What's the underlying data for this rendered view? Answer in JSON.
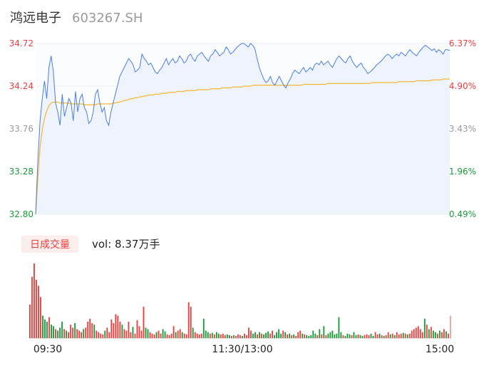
{
  "stock": {
    "name": "鸿远电子",
    "code": "603267.SH"
  },
  "volume_panel": {
    "tag_label": "日成交量",
    "vol_text": "vol: 8.37万手"
  },
  "colors": {
    "price_line": "#4a7fe0",
    "price_fill": "#eef3fc",
    "avg_line": "#f5b731",
    "up": "#e84040",
    "down": "#1a9a3a",
    "neutral": "#9a9a9a",
    "grid": "#eeeeee",
    "tag_bg": "#fdeeee",
    "tag_text": "#e84040"
  },
  "chart_data": {
    "type": "line",
    "prev_close": 32.64,
    "x_tick_labels": [
      "09:30",
      "11:30/13:00",
      "15:00"
    ],
    "price_axis_labels": [
      "34.72",
      "34.24",
      "33.76",
      "33.28",
      "32.80"
    ],
    "price_axis_values": [
      34.72,
      34.24,
      33.76,
      33.28,
      32.8
    ],
    "pct_axis_labels": [
      "6.37%",
      "4.90%",
      "3.43%",
      "1.96%",
      "0.49%"
    ],
    "ylim": [
      32.8,
      34.72
    ],
    "series": [
      {
        "name": "price",
        "values": [
          32.8,
          33.4,
          33.85,
          34.1,
          34.3,
          34.1,
          34.45,
          34.58,
          34.4,
          34.05,
          33.95,
          33.8,
          34.15,
          33.9,
          34.0,
          34.1,
          34.05,
          33.85,
          34.18,
          33.95,
          34.1,
          34.15,
          34.0,
          33.95,
          33.82,
          33.85,
          33.95,
          34.15,
          34.2,
          34.05,
          33.95,
          34.0,
          33.85,
          33.8,
          33.95,
          34.05,
          34.15,
          34.25,
          34.35,
          34.4,
          34.45,
          34.5,
          34.55,
          34.52,
          34.48,
          34.4,
          34.42,
          34.45,
          34.6,
          34.55,
          34.52,
          34.48,
          34.5,
          34.45,
          34.4,
          34.38,
          34.42,
          34.45,
          34.5,
          34.55,
          34.48,
          34.52,
          34.55,
          34.5,
          34.52,
          34.58,
          34.55,
          34.5,
          34.52,
          34.58,
          34.6,
          34.55,
          34.52,
          34.58,
          34.6,
          34.62,
          34.58,
          34.55,
          34.52,
          34.58,
          34.6,
          34.65,
          34.62,
          34.58,
          34.6,
          34.62,
          34.68,
          34.65,
          34.6,
          34.62,
          34.65,
          34.68,
          34.7,
          34.72,
          34.72,
          34.7,
          34.68,
          34.72,
          34.7,
          34.66,
          34.55,
          34.45,
          34.38,
          34.32,
          34.28,
          34.3,
          34.35,
          34.28,
          34.25,
          34.3,
          34.35,
          34.3,
          34.25,
          34.22,
          34.28,
          34.32,
          34.38,
          34.42,
          34.4,
          34.38,
          34.42,
          34.45,
          34.4,
          34.42,
          34.45,
          34.42,
          34.48,
          34.5,
          34.48,
          34.52,
          34.48,
          34.5,
          34.52,
          34.48,
          34.45,
          34.5,
          34.55,
          34.58,
          34.55,
          34.52,
          34.5,
          34.55,
          34.58,
          34.52,
          34.48,
          34.45,
          34.48,
          34.5,
          34.45,
          34.42,
          34.38,
          34.4,
          34.42,
          34.45,
          34.48,
          34.5,
          34.52,
          34.55,
          34.58,
          34.6,
          34.58,
          34.55,
          34.58,
          34.6,
          34.58,
          34.62,
          34.6,
          34.58,
          34.62,
          34.65,
          34.62,
          34.6,
          34.58,
          34.62,
          34.65,
          34.68,
          34.7,
          34.68,
          34.66,
          34.64,
          34.66,
          34.62,
          34.65,
          34.63,
          34.6,
          34.65,
          34.65,
          34.64
        ]
      },
      {
        "name": "average",
        "values": [
          32.8,
          33.2,
          33.55,
          33.75,
          33.88,
          33.96,
          34.02,
          34.05,
          34.06,
          34.06,
          34.06,
          34.05,
          34.05,
          34.05,
          34.05,
          34.05,
          34.04,
          34.04,
          34.04,
          34.04,
          34.04,
          34.04,
          34.03,
          34.03,
          34.03,
          34.03,
          34.03,
          34.03,
          34.04,
          34.04,
          34.04,
          34.04,
          34.04,
          34.04,
          34.04,
          34.05,
          34.05,
          34.06,
          34.06,
          34.07,
          34.08,
          34.08,
          34.09,
          34.1,
          34.1,
          34.11,
          34.11,
          34.12,
          34.12,
          34.13,
          34.13,
          34.14,
          34.14,
          34.14,
          34.15,
          34.15,
          34.15,
          34.16,
          34.16,
          34.16,
          34.17,
          34.17,
          34.17,
          34.17,
          34.18,
          34.18,
          34.18,
          34.18,
          34.19,
          34.19,
          34.19,
          34.19,
          34.19,
          34.2,
          34.2,
          34.2,
          34.2,
          34.2,
          34.2,
          34.21,
          34.21,
          34.21,
          34.21,
          34.21,
          34.22,
          34.22,
          34.22,
          34.22,
          34.22,
          34.23,
          34.23,
          34.23,
          34.23,
          34.23,
          34.24,
          34.24,
          34.24,
          34.24,
          34.25,
          34.25,
          34.25,
          34.25,
          34.25,
          34.25,
          34.25,
          34.25,
          34.25,
          34.25,
          34.25,
          34.25,
          34.25,
          34.25,
          34.25,
          34.25,
          34.25,
          34.25,
          34.25,
          34.25,
          34.25,
          34.25,
          34.25,
          34.26,
          34.26,
          34.26,
          34.26,
          34.26,
          34.26,
          34.26,
          34.26,
          34.26,
          34.26,
          34.26,
          34.27,
          34.27,
          34.27,
          34.27,
          34.27,
          34.27,
          34.27,
          34.27,
          34.27,
          34.27,
          34.27,
          34.27,
          34.27,
          34.27,
          34.27,
          34.27,
          34.27,
          34.27,
          34.27,
          34.27,
          34.28,
          34.28,
          34.28,
          34.28,
          34.28,
          34.28,
          34.28,
          34.28,
          34.28,
          34.28,
          34.28,
          34.28,
          34.29,
          34.29,
          34.29,
          34.29,
          34.29,
          34.29,
          34.29,
          34.29,
          34.3,
          34.3,
          34.3,
          34.3,
          34.3,
          34.3,
          34.3,
          34.31,
          34.31,
          34.31,
          34.31,
          34.31,
          34.32,
          34.32,
          34.32,
          34.32
        ]
      }
    ],
    "volume": [
      {
        "v": 0.45,
        "d": 1
      },
      {
        "v": 0.82,
        "d": 1
      },
      {
        "v": 1.0,
        "d": 1
      },
      {
        "v": 0.78,
        "d": 1
      },
      {
        "v": 0.7,
        "d": 1
      },
      {
        "v": 0.55,
        "d": 1
      },
      {
        "v": 0.3,
        "d": -1
      },
      {
        "v": 0.25,
        "d": -1
      },
      {
        "v": 0.22,
        "d": -1
      },
      {
        "v": 0.28,
        "d": 1
      },
      {
        "v": 0.18,
        "d": -1
      },
      {
        "v": 0.16,
        "d": -1
      },
      {
        "v": 0.12,
        "d": 1
      },
      {
        "v": 0.1,
        "d": -1
      },
      {
        "v": 0.14,
        "d": -1
      },
      {
        "v": 0.22,
        "d": -1
      },
      {
        "v": 0.12,
        "d": 1
      },
      {
        "v": 0.1,
        "d": -1
      },
      {
        "v": 0.08,
        "d": 1
      },
      {
        "v": 0.18,
        "d": 1
      },
      {
        "v": 0.14,
        "d": 1
      },
      {
        "v": 0.2,
        "d": -1
      },
      {
        "v": 0.12,
        "d": 1
      },
      {
        "v": 0.1,
        "d": 1
      },
      {
        "v": 0.08,
        "d": 1
      },
      {
        "v": 0.12,
        "d": -1
      },
      {
        "v": 0.14,
        "d": 1
      },
      {
        "v": 0.22,
        "d": 1
      },
      {
        "v": 0.26,
        "d": 1
      },
      {
        "v": 0.2,
        "d": 1
      },
      {
        "v": 0.18,
        "d": -1
      },
      {
        "v": 0.1,
        "d": 1
      },
      {
        "v": 0.08,
        "d": 1
      },
      {
        "v": 0.06,
        "d": 1
      },
      {
        "v": 0.05,
        "d": 1
      },
      {
        "v": 0.1,
        "d": -1
      },
      {
        "v": 0.14,
        "d": 1
      },
      {
        "v": 0.08,
        "d": 1
      },
      {
        "v": 0.25,
        "d": 1
      },
      {
        "v": 0.2,
        "d": 1
      },
      {
        "v": 0.32,
        "d": 1
      },
      {
        "v": 0.3,
        "d": 1
      },
      {
        "v": 0.22,
        "d": 1
      },
      {
        "v": 0.18,
        "d": -1
      },
      {
        "v": 0.12,
        "d": 1
      },
      {
        "v": 0.1,
        "d": 1
      },
      {
        "v": 0.22,
        "d": 1
      },
      {
        "v": 0.08,
        "d": 1
      },
      {
        "v": 0.15,
        "d": -1
      },
      {
        "v": 0.06,
        "d": 1
      },
      {
        "v": 0.24,
        "d": 1
      },
      {
        "v": 0.16,
        "d": 1
      },
      {
        "v": 0.1,
        "d": 1
      },
      {
        "v": 0.42,
        "d": 1
      },
      {
        "v": 0.14,
        "d": -1
      },
      {
        "v": 0.12,
        "d": -1
      },
      {
        "v": 0.08,
        "d": 1
      },
      {
        "v": 0.06,
        "d": 1
      },
      {
        "v": 0.05,
        "d": 1
      },
      {
        "v": 0.08,
        "d": -1
      },
      {
        "v": 0.1,
        "d": 1
      },
      {
        "v": 0.06,
        "d": 1
      },
      {
        "v": 0.12,
        "d": -1
      },
      {
        "v": 0.09,
        "d": -1
      },
      {
        "v": 0.05,
        "d": 1
      },
      {
        "v": 0.04,
        "d": 1
      },
      {
        "v": 0.06,
        "d": 1
      },
      {
        "v": 0.16,
        "d": 1
      },
      {
        "v": 0.08,
        "d": -1
      },
      {
        "v": 0.1,
        "d": 1
      },
      {
        "v": 0.12,
        "d": 1
      },
      {
        "v": 0.08,
        "d": -1
      },
      {
        "v": 0.06,
        "d": 1
      },
      {
        "v": 0.05,
        "d": 1
      },
      {
        "v": 0.48,
        "d": 1
      },
      {
        "v": 0.42,
        "d": 1
      },
      {
        "v": 0.14,
        "d": -1
      },
      {
        "v": 0.08,
        "d": 1
      },
      {
        "v": 0.06,
        "d": 1
      },
      {
        "v": 0.05,
        "d": 1
      },
      {
        "v": 0.06,
        "d": 1
      },
      {
        "v": 0.26,
        "d": -1
      },
      {
        "v": 0.1,
        "d": -1
      },
      {
        "v": 0.08,
        "d": -1
      },
      {
        "v": 0.06,
        "d": 1
      },
      {
        "v": 0.07,
        "d": -1
      },
      {
        "v": 0.05,
        "d": 1
      },
      {
        "v": 0.08,
        "d": -1
      },
      {
        "v": 0.06,
        "d": -1
      },
      {
        "v": 0.05,
        "d": 1
      },
      {
        "v": 0.06,
        "d": 1
      },
      {
        "v": 0.04,
        "d": 1
      },
      {
        "v": 0.05,
        "d": -1
      },
      {
        "v": 0.04,
        "d": -1
      },
      {
        "v": 0.03,
        "d": 1
      },
      {
        "v": 0.04,
        "d": -1
      },
      {
        "v": 0.03,
        "d": 1
      },
      {
        "v": 0.05,
        "d": 1
      },
      {
        "v": 0.04,
        "d": 1
      },
      {
        "v": 0.03,
        "d": -1
      },
      {
        "v": 0.06,
        "d": 1
      },
      {
        "v": 0.04,
        "d": 1
      },
      {
        "v": 0.14,
        "d": 1
      },
      {
        "v": 0.1,
        "d": 1
      },
      {
        "v": 0.06,
        "d": -1
      },
      {
        "v": 0.08,
        "d": -1
      },
      {
        "v": 0.05,
        "d": 1
      },
      {
        "v": 0.08,
        "d": -1
      },
      {
        "v": 0.06,
        "d": 1
      },
      {
        "v": 0.05,
        "d": -1
      },
      {
        "v": 0.07,
        "d": -1
      },
      {
        "v": 0.09,
        "d": -1
      },
      {
        "v": 0.06,
        "d": 1
      },
      {
        "v": 0.1,
        "d": 1
      },
      {
        "v": 0.04,
        "d": -1
      },
      {
        "v": 0.08,
        "d": -1
      },
      {
        "v": 0.12,
        "d": -1
      },
      {
        "v": 0.06,
        "d": -1
      },
      {
        "v": 0.1,
        "d": 1
      },
      {
        "v": 0.08,
        "d": -1
      },
      {
        "v": 0.05,
        "d": 1
      },
      {
        "v": 0.06,
        "d": -1
      },
      {
        "v": 0.04,
        "d": 1
      },
      {
        "v": 0.05,
        "d": -1
      },
      {
        "v": 0.03,
        "d": 1
      },
      {
        "v": 0.08,
        "d": 1
      },
      {
        "v": 0.1,
        "d": 1
      },
      {
        "v": 0.06,
        "d": -1
      },
      {
        "v": 0.05,
        "d": 1
      },
      {
        "v": 0.04,
        "d": -1
      },
      {
        "v": 0.03,
        "d": -1
      },
      {
        "v": 0.04,
        "d": -1
      },
      {
        "v": 0.1,
        "d": -1
      },
      {
        "v": 0.06,
        "d": -1
      },
      {
        "v": 0.04,
        "d": 1
      },
      {
        "v": 0.12,
        "d": -1
      },
      {
        "v": 0.05,
        "d": 1
      },
      {
        "v": 0.16,
        "d": -1
      },
      {
        "v": 0.04,
        "d": 1
      },
      {
        "v": 0.06,
        "d": -1
      },
      {
        "v": 0.08,
        "d": -1
      },
      {
        "v": 0.1,
        "d": -1
      },
      {
        "v": 0.05,
        "d": -1
      },
      {
        "v": 0.06,
        "d": -1
      },
      {
        "v": 0.28,
        "d": -1
      },
      {
        "v": 0.08,
        "d": -1
      },
      {
        "v": 0.04,
        "d": 1
      },
      {
        "v": 0.03,
        "d": -1
      },
      {
        "v": 0.06,
        "d": -1
      },
      {
        "v": 0.05,
        "d": -1
      },
      {
        "v": 0.04,
        "d": 1
      },
      {
        "v": 0.08,
        "d": -1
      },
      {
        "v": 0.04,
        "d": -1
      },
      {
        "v": 0.05,
        "d": 1
      },
      {
        "v": 0.04,
        "d": -1
      },
      {
        "v": 0.03,
        "d": -1
      },
      {
        "v": 0.04,
        "d": 1
      },
      {
        "v": 0.05,
        "d": 1
      },
      {
        "v": 0.04,
        "d": 1
      },
      {
        "v": 0.06,
        "d": -1
      },
      {
        "v": 0.03,
        "d": -1
      },
      {
        "v": 0.08,
        "d": 1
      },
      {
        "v": 0.05,
        "d": 1
      },
      {
        "v": 0.06,
        "d": -1
      },
      {
        "v": 0.04,
        "d": 1
      },
      {
        "v": 0.03,
        "d": -1
      },
      {
        "v": 0.04,
        "d": 1
      },
      {
        "v": 0.08,
        "d": 1
      },
      {
        "v": 0.05,
        "d": -1
      },
      {
        "v": 0.06,
        "d": 1
      },
      {
        "v": 0.04,
        "d": -1
      },
      {
        "v": 0.08,
        "d": 1
      },
      {
        "v": 0.05,
        "d": 1
      },
      {
        "v": 0.06,
        "d": 1
      },
      {
        "v": 0.07,
        "d": -1
      },
      {
        "v": 0.06,
        "d": 1
      },
      {
        "v": 0.05,
        "d": -1
      },
      {
        "v": 0.06,
        "d": 1
      },
      {
        "v": 0.1,
        "d": 1
      },
      {
        "v": 0.12,
        "d": 1
      },
      {
        "v": 0.14,
        "d": 1
      },
      {
        "v": 0.16,
        "d": 1
      },
      {
        "v": 0.12,
        "d": 1
      },
      {
        "v": 0.08,
        "d": 1
      },
      {
        "v": 0.26,
        "d": -1
      },
      {
        "v": 0.18,
        "d": 1
      },
      {
        "v": 0.12,
        "d": -1
      },
      {
        "v": 0.15,
        "d": 1
      },
      {
        "v": 0.1,
        "d": -1
      },
      {
        "v": 0.08,
        "d": -1
      },
      {
        "v": 0.06,
        "d": 1
      },
      {
        "v": 0.1,
        "d": -1
      },
      {
        "v": 0.08,
        "d": 1
      },
      {
        "v": 0.12,
        "d": 1
      },
      {
        "v": 0.09,
        "d": -1
      },
      {
        "v": 0.06,
        "d": 1
      },
      {
        "v": 0.3,
        "d": 0
      }
    ]
  }
}
